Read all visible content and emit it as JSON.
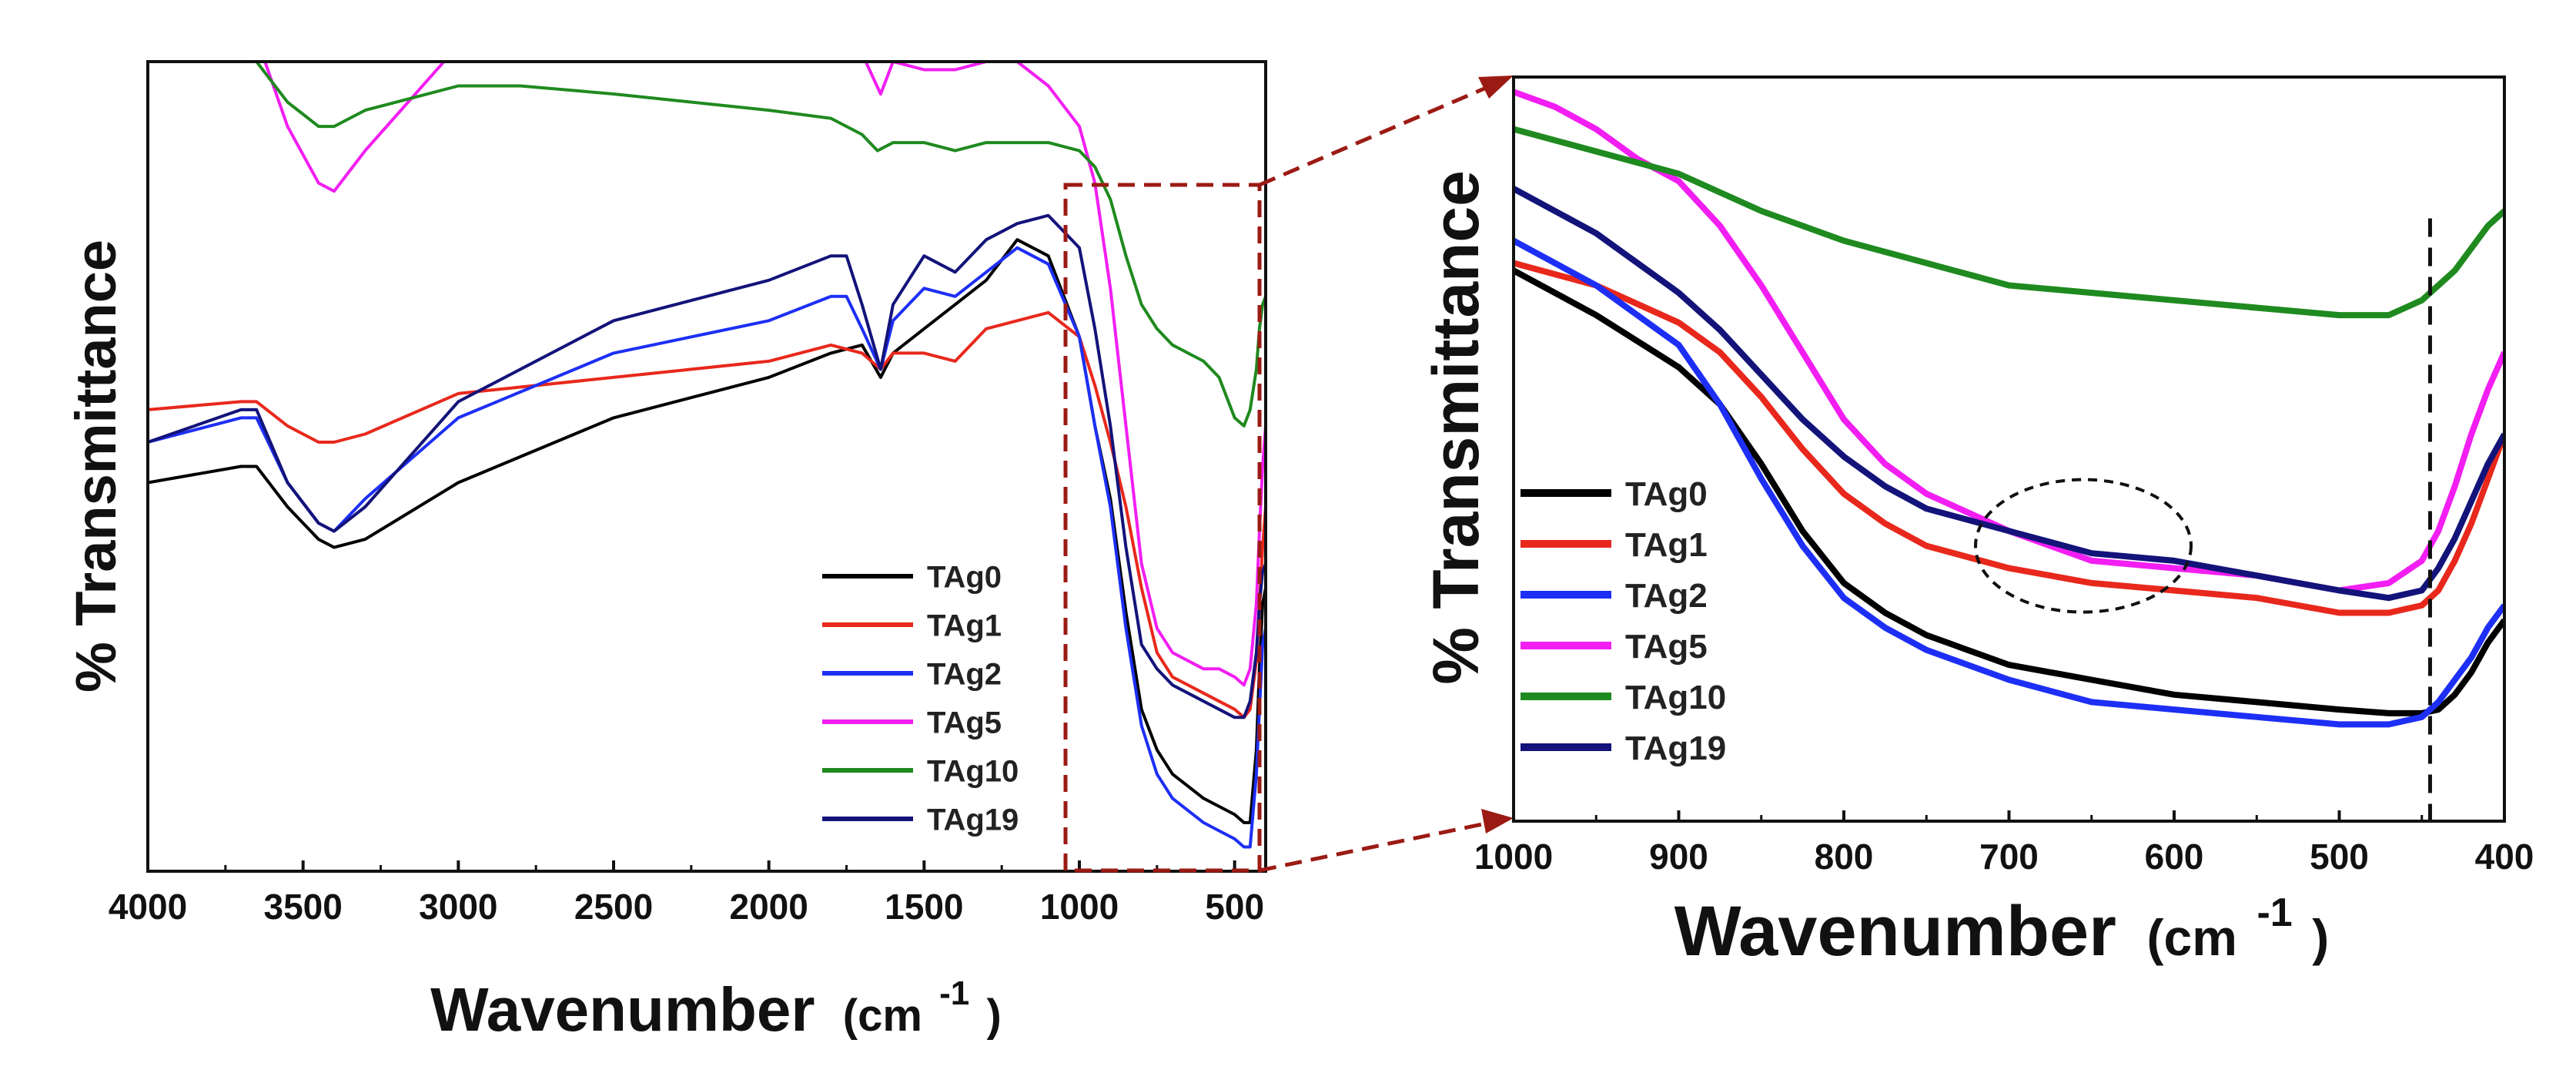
{
  "colors": {
    "TAg0": "#000000",
    "TAg1": "#e8281c",
    "TAg2": "#1d2ff5",
    "TAg5": "#f21ef2",
    "TAg10": "#1f8a1f",
    "TAg19": "#13137a",
    "zoom_box": "#9b1b14"
  },
  "chart_data": [
    {
      "type": "line",
      "panel": "full spectrum",
      "xlabel_main": "Wavenumber",
      "xlabel_unit_open": "(cm",
      "xlabel_unit_sup": "-1",
      "xlabel_unit_close": ")",
      "ylabel": "% Transmittance",
      "xlim": [
        4000,
        400
      ],
      "ylim": [
        0,
        100
      ],
      "x_reversed": true,
      "y_ticks_labeled": false,
      "xticks": [
        4000,
        3500,
        3000,
        2500,
        2000,
        1500,
        1000,
        500
      ],
      "xtick_labels": [
        "4000",
        "3500",
        "3000",
        "2500",
        "2000",
        "1500",
        "1000",
        "500"
      ],
      "legend_position": "bottom-right",
      "zoom_region": [
        1000,
        400
      ],
      "series": [
        {
          "name": "TAg0",
          "x": [
            4000,
            3700,
            3650,
            3550,
            3450,
            3400,
            3300,
            3000,
            2500,
            2000,
            1800,
            1700,
            1640,
            1600,
            1500,
            1400,
            1300,
            1200,
            1100,
            1000,
            950,
            900,
            850,
            800,
            750,
            700,
            600,
            550,
            500,
            470,
            450,
            430,
            420,
            410,
            400
          ],
          "y": [
            48,
            50,
            50,
            45,
            41,
            40,
            41,
            48,
            56,
            61,
            64,
            65,
            61,
            64,
            67,
            70,
            73,
            78,
            76,
            66,
            55,
            46,
            32,
            20,
            15,
            12,
            9,
            8,
            7,
            6,
            6,
            15,
            25,
            33,
            35
          ]
        },
        {
          "name": "TAg1",
          "x": [
            4000,
            3700,
            3650,
            3550,
            3450,
            3400,
            3300,
            3000,
            2500,
            2000,
            1800,
            1700,
            1640,
            1600,
            1500,
            1400,
            1300,
            1200,
            1100,
            1000,
            950,
            900,
            850,
            800,
            750,
            700,
            600,
            550,
            500,
            470,
            450,
            430,
            420,
            410,
            400
          ],
          "y": [
            57,
            58,
            58,
            55,
            53,
            53,
            54,
            59,
            61,
            63,
            65,
            64,
            62,
            64,
            64,
            63,
            67,
            68,
            69,
            66,
            60,
            53,
            45,
            35,
            27,
            24,
            22,
            21,
            20,
            19,
            20,
            26,
            33,
            40,
            45
          ]
        },
        {
          "name": "TAg2",
          "x": [
            4000,
            3700,
            3650,
            3550,
            3450,
            3400,
            3300,
            3000,
            2500,
            2000,
            1800,
            1750,
            1700,
            1640,
            1600,
            1500,
            1400,
            1300,
            1200,
            1100,
            1000,
            950,
            900,
            850,
            800,
            750,
            700,
            600,
            550,
            500,
            470,
            450,
            430,
            420,
            410,
            400
          ],
          "y": [
            53,
            56,
            56,
            48,
            43,
            42,
            46,
            56,
            64,
            68,
            71,
            71,
            67,
            62,
            68,
            72,
            71,
            74,
            77,
            75,
            66,
            55,
            45,
            30,
            18,
            12,
            9,
            6,
            5,
            4,
            3,
            3,
            12,
            20,
            28,
            30
          ]
        },
        {
          "name": "TAg5",
          "x": [
            4000,
            3800,
            3700,
            3650,
            3550,
            3450,
            3400,
            3300,
            3000,
            2500,
            2000,
            1800,
            1700,
            1640,
            1600,
            1500,
            1400,
            1300,
            1200,
            1100,
            1000,
            950,
            900,
            850,
            800,
            750,
            700,
            600,
            550,
            500,
            470,
            450,
            430,
            420,
            410,
            400
          ],
          "y": [
            100,
            102,
            104,
            103,
            92,
            85,
            84,
            89,
            102,
            106,
            105,
            104,
            101,
            96,
            100,
            99,
            99,
            100,
            100,
            97,
            92,
            85,
            72,
            55,
            38,
            30,
            27,
            25,
            25,
            24,
            23,
            25,
            33,
            42,
            50,
            55
          ]
        },
        {
          "name": "TAg10",
          "x": [
            4000,
            3900,
            3800,
            3700,
            3650,
            3550,
            3450,
            3400,
            3300,
            3000,
            2800,
            2500,
            2000,
            1800,
            1700,
            1650,
            1600,
            1500,
            1400,
            1300,
            1200,
            1100,
            1000,
            950,
            900,
            850,
            800,
            750,
            700,
            600,
            550,
            500,
            470,
            450,
            430,
            420,
            410,
            400
          ],
          "y": [
            100,
            100,
            101,
            101,
            100,
            95,
            92,
            92,
            94,
            97,
            97,
            96,
            94,
            93,
            91,
            89,
            90,
            90,
            89,
            90,
            90,
            90,
            89,
            87,
            83,
            76,
            70,
            67,
            65,
            63,
            61,
            56,
            55,
            57,
            62,
            67,
            70,
            71
          ]
        },
        {
          "name": "TAg19",
          "x": [
            4000,
            3700,
            3650,
            3550,
            3450,
            3400,
            3300,
            3000,
            2500,
            2000,
            1800,
            1750,
            1700,
            1640,
            1600,
            1500,
            1400,
            1300,
            1200,
            1100,
            1000,
            950,
            900,
            850,
            800,
            750,
            700,
            600,
            550,
            500,
            470,
            450,
            430,
            420,
            410,
            400
          ],
          "y": [
            53,
            57,
            57,
            48,
            43,
            42,
            45,
            58,
            68,
            73,
            76,
            76,
            70,
            62,
            70,
            76,
            74,
            78,
            80,
            81,
            77,
            67,
            55,
            40,
            28,
            25,
            23,
            21,
            20,
            19,
            19,
            21,
            27,
            33,
            37,
            38
          ]
        }
      ]
    },
    {
      "type": "line",
      "panel": "zoomed 1000-400",
      "xlabel_main": "Wavenumber",
      "xlabel_unit_open": "(cm",
      "xlabel_unit_sup": "-1",
      "xlabel_unit_close": ")",
      "ylabel": "% Transmittance",
      "xlim": [
        1000,
        400
      ],
      "ylim": [
        0,
        100
      ],
      "x_reversed": true,
      "y_ticks_labeled": false,
      "xticks": [
        1000,
        900,
        800,
        700,
        600,
        500,
        400
      ],
      "xtick_labels": [
        "1000",
        "900",
        "800",
        "700",
        "600",
        "500",
        "400"
      ],
      "legend_position": "left-middle",
      "reference_line_x": 445,
      "highlight_ellipse_center": [
        655,
        37
      ],
      "series": [
        {
          "name": "TAg0",
          "x": [
            1000,
            950,
            900,
            875,
            850,
            825,
            800,
            775,
            750,
            700,
            650,
            600,
            550,
            500,
            470,
            450,
            440,
            430,
            420,
            410,
            400
          ],
          "y": [
            74,
            68,
            61,
            56,
            48,
            39,
            32,
            28,
            25,
            21,
            19,
            17,
            16,
            15,
            14.5,
            14.5,
            15,
            17,
            20,
            24,
            27
          ]
        },
        {
          "name": "TAg1",
          "x": [
            1000,
            950,
            900,
            875,
            850,
            825,
            800,
            775,
            750,
            700,
            650,
            600,
            550,
            500,
            470,
            450,
            440,
            430,
            420,
            410,
            400
          ],
          "y": [
            75,
            72,
            67,
            63,
            57,
            50,
            44,
            40,
            37,
            34,
            32,
            31,
            30,
            28,
            28,
            29,
            31,
            35,
            40,
            46,
            52
          ]
        },
        {
          "name": "TAg2",
          "x": [
            1000,
            950,
            900,
            875,
            850,
            825,
            800,
            775,
            750,
            700,
            650,
            600,
            550,
            500,
            470,
            450,
            440,
            430,
            420,
            410,
            400
          ],
          "y": [
            78,
            72,
            64,
            56,
            46,
            37,
            30,
            26,
            23,
            19,
            16,
            15,
            14,
            13,
            13,
            14,
            16,
            19,
            22,
            26,
            29
          ]
        },
        {
          "name": "TAg5",
          "x": [
            1000,
            975,
            950,
            925,
            900,
            875,
            850,
            825,
            800,
            775,
            750,
            700,
            650,
            600,
            550,
            500,
            470,
            450,
            440,
            430,
            420,
            410,
            400
          ],
          "y": [
            98,
            96,
            93,
            89,
            86,
            80,
            72,
            63,
            54,
            48,
            44,
            39,
            35,
            34,
            33,
            31,
            32,
            35,
            39,
            45,
            52,
            58,
            63
          ]
        },
        {
          "name": "TAg10",
          "x": [
            1000,
            950,
            900,
            850,
            800,
            750,
            700,
            650,
            600,
            550,
            500,
            470,
            450,
            440,
            430,
            420,
            410,
            400
          ],
          "y": [
            93,
            90,
            87,
            82,
            78,
            75,
            72,
            71,
            70,
            69,
            68,
            68,
            70,
            72,
            74,
            77,
            80,
            82
          ]
        },
        {
          "name": "TAg19",
          "x": [
            1000,
            975,
            950,
            925,
            900,
            875,
            850,
            825,
            800,
            775,
            750,
            700,
            650,
            600,
            550,
            500,
            470,
            450,
            440,
            430,
            420,
            410,
            400
          ],
          "y": [
            85,
            82,
            79,
            75,
            71,
            66,
            60,
            54,
            49,
            45,
            42,
            39,
            36,
            35,
            33,
            31,
            30,
            31,
            34,
            38,
            43,
            48,
            52
          ]
        }
      ]
    }
  ]
}
